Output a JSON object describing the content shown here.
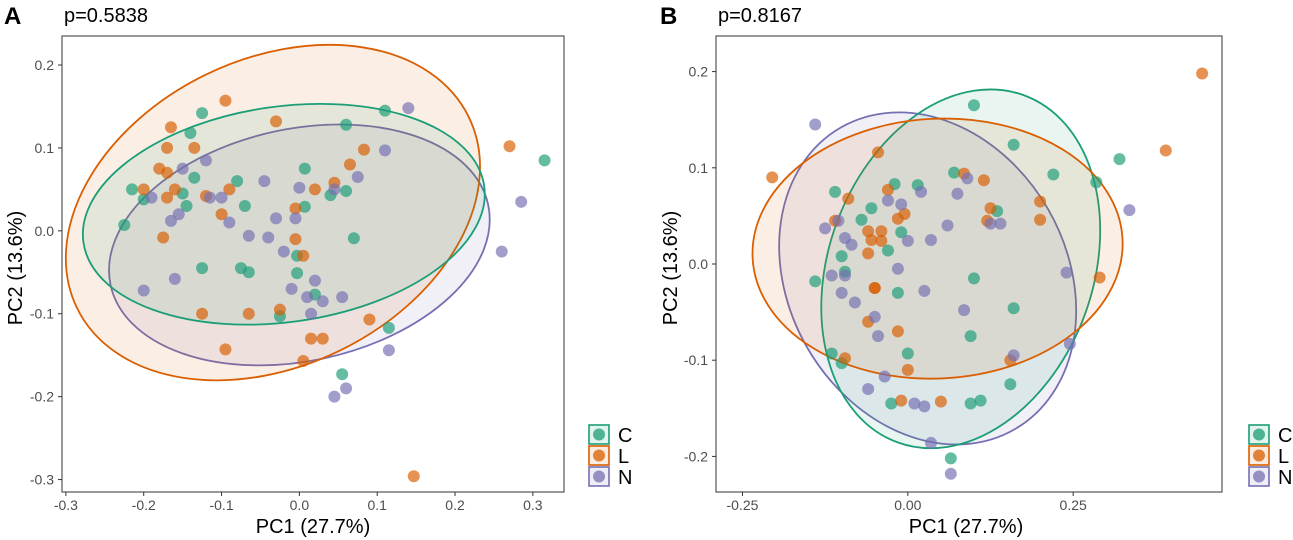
{
  "figure": {
    "legend": [
      {
        "label": "C",
        "color": "#1b9e77"
      },
      {
        "label": "L",
        "color": "#d95f02"
      },
      {
        "label": "N",
        "color": "#7570b3"
      }
    ]
  },
  "chart_data": [
    {
      "type": "scatter",
      "panel": "A",
      "title": "p=0.5838",
      "xlabel": "PC1 (27.7%)",
      "ylabel": "PC2 (13.6%)",
      "xlim": [
        -0.305,
        0.34
      ],
      "ylim": [
        -0.315,
        0.235
      ],
      "xticks": [
        -0.3,
        -0.2,
        -0.1,
        0.0,
        0.1,
        0.2,
        0.3
      ],
      "xtick_labels": [
        "-0.3",
        "-0.2",
        "-0.1",
        "0.0",
        "0.1",
        "0.2",
        "0.3"
      ],
      "yticks": [
        -0.3,
        -0.2,
        -0.1,
        0.0,
        0.1,
        0.2
      ],
      "ytick_labels": [
        "-0.3",
        "-0.2",
        "-0.1",
        "0.0",
        "0.1",
        "0.2"
      ],
      "ellipses": [
        {
          "group": "N",
          "cx": 0.0,
          "cy": -0.017,
          "rx": 0.248,
          "ry": 0.14,
          "angle": -12
        },
        {
          "group": "L",
          "cx": -0.034,
          "cy": 0.022,
          "rx": 0.28,
          "ry": 0.185,
          "angle": -26
        },
        {
          "group": "C",
          "cx": -0.02,
          "cy": 0.02,
          "rx": 0.26,
          "ry": 0.13,
          "angle": -8
        }
      ],
      "series": [
        {
          "name": "C",
          "points": [
            [
              -0.225,
              0.007
            ],
            [
              -0.215,
              0.05
            ],
            [
              -0.2,
              0.038
            ],
            [
              -0.15,
              0.045
            ],
            [
              -0.14,
              0.118
            ],
            [
              -0.125,
              0.142
            ],
            [
              -0.135,
              0.064
            ],
            [
              -0.125,
              -0.045
            ],
            [
              -0.145,
              0.03
            ],
            [
              -0.08,
              0.06
            ],
            [
              -0.07,
              0.03
            ],
            [
              -0.075,
              -0.045
            ],
            [
              -0.065,
              -0.05
            ],
            [
              -0.025,
              -0.103
            ],
            [
              -0.003,
              -0.03
            ],
            [
              -0.003,
              -0.051
            ],
            [
              0.007,
              0.075
            ],
            [
              0.007,
              0.029
            ],
            [
              0.04,
              0.043
            ],
            [
              0.06,
              0.048
            ],
            [
              0.07,
              -0.009
            ],
            [
              0.06,
              0.128
            ],
            [
              0.11,
              0.145
            ],
            [
              0.115,
              -0.117
            ],
            [
              0.055,
              -0.173
            ],
            [
              0.02,
              -0.077
            ],
            [
              0.315,
              0.085
            ]
          ]
        },
        {
          "name": "L",
          "points": [
            [
              -0.2,
              0.05
            ],
            [
              -0.17,
              0.07
            ],
            [
              -0.165,
              0.125
            ],
            [
              -0.16,
              0.05
            ],
            [
              -0.18,
              0.075
            ],
            [
              -0.17,
              0.04
            ],
            [
              -0.17,
              0.1
            ],
            [
              -0.135,
              0.1
            ],
            [
              -0.12,
              0.042
            ],
            [
              -0.1,
              0.02
            ],
            [
              -0.095,
              0.157
            ],
            [
              -0.09,
              0.05
            ],
            [
              -0.065,
              -0.1
            ],
            [
              -0.03,
              0.132
            ],
            [
              -0.025,
              -0.095
            ],
            [
              -0.005,
              0.027
            ],
            [
              -0.005,
              -0.01
            ],
            [
              0.005,
              -0.03
            ],
            [
              0.02,
              0.05
            ],
            [
              0.045,
              0.058
            ],
            [
              0.065,
              0.08
            ],
            [
              0.083,
              0.098
            ],
            [
              0.09,
              -0.107
            ],
            [
              -0.125,
              -0.1
            ],
            [
              -0.095,
              -0.143
            ],
            [
              0.005,
              -0.157
            ],
            [
              0.03,
              -0.13
            ],
            [
              0.015,
              -0.13
            ],
            [
              -0.175,
              -0.008
            ],
            [
              0.27,
              0.102
            ],
            [
              0.147,
              -0.296
            ]
          ]
        },
        {
          "name": "N",
          "points": [
            [
              -0.2,
              -0.072
            ],
            [
              -0.19,
              0.04
            ],
            [
              -0.165,
              0.012
            ],
            [
              -0.16,
              -0.058
            ],
            [
              -0.155,
              0.02
            ],
            [
              -0.15,
              0.075
            ],
            [
              -0.12,
              0.085
            ],
            [
              -0.115,
              0.04
            ],
            [
              -0.1,
              0.04
            ],
            [
              -0.09,
              0.01
            ],
            [
              -0.065,
              -0.006
            ],
            [
              -0.045,
              0.06
            ],
            [
              -0.04,
              -0.008
            ],
            [
              -0.03,
              0.015
            ],
            [
              -0.02,
              -0.025
            ],
            [
              -0.01,
              -0.07
            ],
            [
              -0.005,
              0.015
            ],
            [
              0.0,
              0.052
            ],
            [
              0.01,
              -0.08
            ],
            [
              0.015,
              -0.1
            ],
            [
              0.02,
              -0.06
            ],
            [
              0.03,
              -0.085
            ],
            [
              0.045,
              0.05
            ],
            [
              0.055,
              -0.08
            ],
            [
              0.075,
              0.065
            ],
            [
              0.11,
              0.097
            ],
            [
              0.14,
              0.148
            ],
            [
              0.115,
              -0.144
            ],
            [
              0.045,
              -0.2
            ],
            [
              0.06,
              -0.19
            ],
            [
              0.26,
              -0.025
            ],
            [
              0.285,
              0.035
            ]
          ]
        }
      ]
    },
    {
      "type": "scatter",
      "panel": "B",
      "title": "p=0.8167",
      "xlabel": "PC1 (27.7%)",
      "ylabel": "PC2 (13.6%)",
      "xlim": [
        -0.29,
        0.475
      ],
      "ylim": [
        -0.237,
        0.237
      ],
      "xticks": [
        -0.25,
        0.0,
        0.25
      ],
      "xtick_labels": [
        "-0.25",
        "0.00",
        "0.25"
      ],
      "yticks": [
        -0.2,
        -0.1,
        0.0,
        0.1,
        0.2
      ],
      "ytick_labels": [
        "-0.2",
        "-0.1",
        "0.0",
        "0.1",
        "0.2"
      ],
      "ellipses": [
        {
          "group": "N",
          "cx": 0.03,
          "cy": -0.015,
          "rx": 0.21,
          "ry": 0.181,
          "angle": -30
        },
        {
          "group": "C",
          "cx": 0.08,
          "cy": -0.005,
          "rx": 0.2,
          "ry": 0.192,
          "angle": 20
        },
        {
          "group": "L",
          "cx": 0.045,
          "cy": 0.016,
          "rx": 0.28,
          "ry": 0.135,
          "angle": -3
        }
      ],
      "series": [
        {
          "name": "C",
          "points": [
            [
              -0.14,
              -0.018
            ],
            [
              -0.11,
              0.075
            ],
            [
              -0.1,
              0.008
            ],
            [
              -0.095,
              -0.008
            ],
            [
              -0.1,
              -0.103
            ],
            [
              -0.115,
              -0.093
            ],
            [
              -0.07,
              0.046
            ],
            [
              -0.055,
              0.058
            ],
            [
              -0.03,
              0.014
            ],
            [
              -0.02,
              0.083
            ],
            [
              -0.015,
              -0.03
            ],
            [
              -0.01,
              0.033
            ],
            [
              0.0,
              -0.093
            ],
            [
              0.015,
              0.082
            ],
            [
              0.07,
              0.095
            ],
            [
              0.1,
              0.165
            ],
            [
              0.1,
              -0.015
            ],
            [
              0.095,
              -0.075
            ],
            [
              0.095,
              -0.145
            ],
            [
              0.11,
              -0.142
            ],
            [
              0.135,
              0.055
            ],
            [
              0.16,
              0.124
            ],
            [
              0.16,
              -0.046
            ],
            [
              0.155,
              -0.125
            ],
            [
              0.22,
              0.093
            ],
            [
              0.285,
              0.085
            ],
            [
              0.32,
              0.109
            ],
            [
              0.065,
              -0.202
            ],
            [
              -0.025,
              -0.145
            ]
          ]
        },
        {
          "name": "L",
          "points": [
            [
              -0.205,
              0.09
            ],
            [
              -0.11,
              0.045
            ],
            [
              -0.09,
              0.068
            ],
            [
              -0.055,
              0.025
            ],
            [
              -0.06,
              0.034
            ],
            [
              -0.05,
              -0.025
            ],
            [
              -0.05,
              -0.025
            ],
            [
              -0.045,
              0.116
            ],
            [
              -0.04,
              0.034
            ],
            [
              -0.03,
              0.077
            ],
            [
              -0.015,
              0.047
            ],
            [
              -0.005,
              0.052
            ],
            [
              -0.06,
              0.011
            ],
            [
              -0.04,
              0.024
            ],
            [
              0.0,
              -0.11
            ],
            [
              -0.01,
              -0.142
            ],
            [
              0.05,
              -0.143
            ],
            [
              0.085,
              0.094
            ],
            [
              0.115,
              0.087
            ],
            [
              0.125,
              0.058
            ],
            [
              0.12,
              0.045
            ],
            [
              0.155,
              -0.1
            ],
            [
              0.2,
              0.065
            ],
            [
              0.2,
              0.046
            ],
            [
              0.29,
              -0.014
            ],
            [
              0.39,
              0.118
            ],
            [
              0.445,
              0.198
            ],
            [
              -0.095,
              -0.098
            ],
            [
              -0.06,
              -0.06
            ],
            [
              -0.015,
              -0.07
            ]
          ]
        },
        {
          "name": "N",
          "points": [
            [
              -0.14,
              0.145
            ],
            [
              -0.125,
              0.037
            ],
            [
              -0.115,
              -0.012
            ],
            [
              -0.105,
              0.045
            ],
            [
              -0.095,
              -0.012
            ],
            [
              -0.085,
              0.02
            ],
            [
              -0.1,
              -0.03
            ],
            [
              -0.095,
              0.027
            ],
            [
              -0.08,
              -0.04
            ],
            [
              -0.06,
              -0.13
            ],
            [
              -0.05,
              -0.055
            ],
            [
              -0.045,
              -0.075
            ],
            [
              -0.035,
              -0.117
            ],
            [
              -0.03,
              0.066
            ],
            [
              -0.01,
              0.062
            ],
            [
              -0.015,
              -0.005
            ],
            [
              0.0,
              0.024
            ],
            [
              0.025,
              -0.028
            ],
            [
              0.02,
              0.075
            ],
            [
              0.035,
              0.025
            ],
            [
              0.01,
              -0.145
            ],
            [
              0.025,
              -0.148
            ],
            [
              0.035,
              -0.186
            ],
            [
              0.06,
              0.04
            ],
            [
              0.075,
              0.073
            ],
            [
              0.085,
              -0.048
            ],
            [
              0.09,
              0.089
            ],
            [
              0.125,
              0.042
            ],
            [
              0.14,
              0.042
            ],
            [
              0.16,
              -0.095
            ],
            [
              0.24,
              -0.009
            ],
            [
              0.245,
              -0.083
            ],
            [
              0.335,
              0.056
            ],
            [
              0.065,
              -0.218
            ]
          ]
        }
      ]
    }
  ]
}
